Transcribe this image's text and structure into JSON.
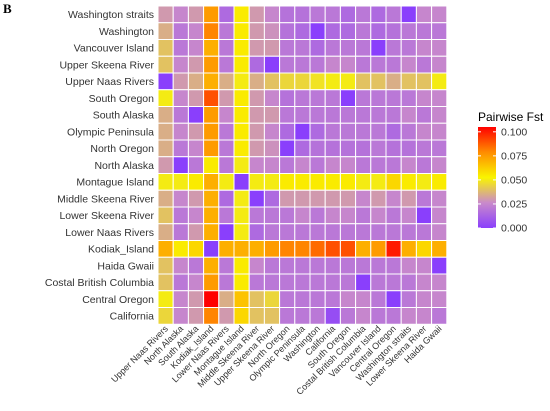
{
  "panel_label": "B",
  "chart_data": {
    "type": "heatmap",
    "title": "",
    "xlabel": "",
    "ylabel": "",
    "x_categories": [
      "Upper Naas Rivers",
      "North Alaska",
      "South Alaska",
      "Kodiak_Island",
      "Lower Naas Rivers",
      "Montague Island",
      "Middle Skeena River",
      "Upper Skeena River",
      "North Oregon",
      "Olympic Peninsula",
      "Washington",
      "California",
      "South Oregon",
      "Costal British Columbia",
      "Vancouver Island",
      "Central Oregon",
      "Washington straits",
      "Lower Skeena River",
      "Haida Gwaii"
    ],
    "y_categories": [
      "Washington straits",
      "Washington",
      "Vancouver Island",
      "Upper Skeena River",
      "Upper Naas Rivers",
      "South Oregon",
      "South Alaska",
      "Olympic Peninsula",
      "North Oregon",
      "North Alaska",
      "Montague Island",
      "Middle Skeena River",
      "Lower Skeena River",
      "Lower Naas Rivers",
      "Kodiak_Island",
      "Haida Gwaii",
      "Costal British Columbia",
      "Central Oregon",
      "California"
    ],
    "values": [
      [
        0.03,
        0.025,
        0.03,
        0.075,
        0.015,
        0.055,
        0.03,
        0.025,
        0.018,
        0.018,
        0.02,
        0.02,
        0.015,
        0.02,
        0.015,
        0.02,
        0.0,
        0.025,
        0.025
      ],
      [
        0.035,
        0.02,
        0.025,
        0.08,
        0.02,
        0.055,
        0.03,
        0.028,
        0.018,
        0.015,
        0.0,
        0.015,
        0.015,
        0.02,
        0.015,
        0.018,
        0.02,
        0.02,
        0.02
      ],
      [
        0.04,
        0.02,
        0.025,
        0.07,
        0.02,
        0.055,
        0.03,
        0.03,
        0.02,
        0.02,
        0.015,
        0.02,
        0.02,
        0.02,
        0.0,
        0.02,
        0.02,
        0.025,
        0.025
      ],
      [
        0.04,
        0.025,
        0.03,
        0.075,
        0.02,
        0.055,
        0.015,
        0.0,
        0.02,
        0.02,
        0.02,
        0.025,
        0.025,
        0.02,
        0.02,
        0.02,
        0.025,
        0.02,
        0.025
      ],
      [
        0.0,
        0.03,
        0.035,
        0.07,
        0.035,
        0.05,
        0.035,
        0.04,
        0.045,
        0.045,
        0.048,
        0.05,
        0.05,
        0.04,
        0.04,
        0.035,
        0.04,
        0.04,
        0.05
      ],
      [
        0.05,
        0.025,
        0.03,
        0.09,
        0.03,
        0.055,
        0.03,
        0.025,
        0.018,
        0.02,
        0.02,
        0.02,
        0.0,
        0.02,
        0.02,
        0.02,
        0.02,
        0.025,
        0.025
      ],
      [
        0.035,
        0.02,
        0.0,
        0.075,
        0.025,
        0.055,
        0.03,
        0.03,
        0.02,
        0.02,
        0.02,
        0.02,
        0.02,
        0.02,
        0.02,
        0.02,
        0.025,
        0.02,
        0.025
      ],
      [
        0.035,
        0.025,
        0.03,
        0.075,
        0.02,
        0.055,
        0.03,
        0.025,
        0.015,
        0.0,
        0.015,
        0.02,
        0.02,
        0.02,
        0.02,
        0.015,
        0.02,
        0.025,
        0.025
      ],
      [
        0.035,
        0.02,
        0.025,
        0.075,
        0.02,
        0.055,
        0.03,
        0.028,
        0.0,
        0.015,
        0.018,
        0.018,
        0.018,
        0.018,
        0.02,
        0.018,
        0.018,
        0.02,
        0.02
      ],
      [
        0.03,
        0.0,
        0.02,
        0.055,
        0.02,
        0.05,
        0.025,
        0.025,
        0.02,
        0.025,
        0.02,
        0.025,
        0.025,
        0.02,
        0.02,
        0.02,
        0.025,
        0.02,
        0.025
      ],
      [
        0.05,
        0.05,
        0.055,
        0.07,
        0.05,
        0.0,
        0.05,
        0.05,
        0.055,
        0.055,
        0.055,
        0.055,
        0.055,
        0.05,
        0.05,
        0.06,
        0.055,
        0.05,
        0.055
      ],
      [
        0.035,
        0.025,
        0.03,
        0.07,
        0.015,
        0.05,
        0.0,
        0.015,
        0.03,
        0.03,
        0.03,
        0.03,
        0.03,
        0.025,
        0.03,
        0.025,
        0.03,
        0.02,
        0.025
      ],
      [
        0.04,
        0.02,
        0.025,
        0.07,
        0.02,
        0.05,
        0.02,
        0.02,
        0.02,
        0.025,
        0.02,
        0.025,
        0.025,
        0.02,
        0.025,
        0.02,
        0.025,
        0.0,
        0.025
      ],
      [
        0.035,
        0.02,
        0.03,
        0.07,
        0.0,
        0.05,
        0.015,
        0.02,
        0.02,
        0.02,
        0.02,
        0.02,
        0.02,
        0.02,
        0.02,
        0.02,
        0.02,
        0.02,
        0.025
      ],
      [
        0.07,
        0.055,
        0.06,
        0.0,
        0.07,
        0.07,
        0.07,
        0.075,
        0.08,
        0.08,
        0.085,
        0.09,
        0.09,
        0.07,
        0.075,
        0.1,
        0.07,
        0.06,
        0.07
      ],
      [
        0.04,
        0.025,
        0.02,
        0.07,
        0.02,
        0.055,
        0.025,
        0.02,
        0.02,
        0.02,
        0.02,
        0.02,
        0.02,
        0.02,
        0.02,
        0.02,
        0.025,
        0.025,
        0.0
      ],
      [
        0.04,
        0.02,
        0.025,
        0.075,
        0.02,
        0.055,
        0.02,
        0.02,
        0.02,
        0.02,
        0.02,
        0.02,
        0.02,
        0.0,
        0.02,
        0.02,
        0.02,
        0.025,
        0.025
      ],
      [
        0.05,
        0.025,
        0.03,
        0.105,
        0.035,
        0.065,
        0.04,
        0.045,
        0.02,
        0.02,
        0.02,
        0.02,
        0.025,
        0.025,
        0.02,
        0.0,
        0.02,
        0.025,
        0.025
      ],
      [
        0.045,
        0.025,
        0.03,
        0.08,
        0.03,
        0.06,
        0.04,
        0.04,
        0.02,
        0.02,
        0.02,
        0.005,
        0.02,
        0.025,
        0.02,
        0.02,
        0.025,
        0.025,
        0.02
      ]
    ],
    "legend": {
      "title": "Pairwise Fst",
      "ticks": [
        "0.000",
        "0.025",
        "0.050",
        "0.075",
        "0.100"
      ],
      "tick_values": [
        0,
        0.025,
        0.05,
        0.075,
        0.1
      ],
      "range": [
        0,
        0.105
      ],
      "placement": "right"
    },
    "colors": {
      "low": "#8A3FFC",
      "low_mid": "#C98ACB",
      "mid": "#F9F500",
      "high_mid": "#FF8C00",
      "high": "#FF0000",
      "gridline": "#ffffff"
    },
    "grid": true
  }
}
